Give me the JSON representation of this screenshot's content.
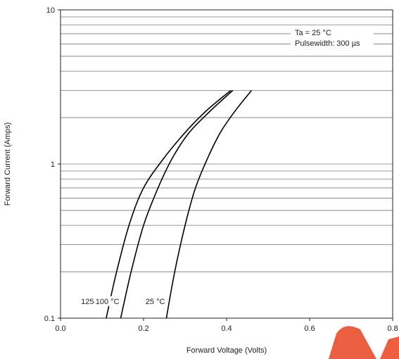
{
  "chart_data": {
    "type": "line",
    "title": "",
    "xlabel": "Forward Voltage (Volts)",
    "ylabel": "Forward Current (Amps)",
    "xlim": [
      0.0,
      0.8
    ],
    "ylim": [
      0.1,
      10
    ],
    "yscale": "log",
    "x_ticks": [
      "0.0",
      "0.2",
      "0.4",
      "0.6",
      "0.8"
    ],
    "y_ticks": [
      "0.1",
      "1",
      "10"
    ],
    "grid": "horizontal",
    "annotation_lines": [
      "Ta = 25 °C",
      "Pulsewidth: 300 µs"
    ],
    "series": [
      {
        "name": "125 °C",
        "points": [
          [
            0.11,
            0.1
          ],
          [
            0.135,
            0.2
          ],
          [
            0.165,
            0.4
          ],
          [
            0.2,
            0.7
          ],
          [
            0.25,
            1.1
          ],
          [
            0.3,
            1.6
          ],
          [
            0.35,
            2.2
          ],
          [
            0.41,
            3.0
          ]
        ]
      },
      {
        "name": "100 °C",
        "points": [
          [
            0.145,
            0.1
          ],
          [
            0.17,
            0.2
          ],
          [
            0.2,
            0.4
          ],
          [
            0.235,
            0.7
          ],
          [
            0.27,
            1.1
          ],
          [
            0.31,
            1.6
          ],
          [
            0.36,
            2.2
          ],
          [
            0.415,
            3.0
          ]
        ]
      },
      {
        "name": "25 °C",
        "points": [
          [
            0.255,
            0.1
          ],
          [
            0.275,
            0.2
          ],
          [
            0.3,
            0.4
          ],
          [
            0.325,
            0.7
          ],
          [
            0.355,
            1.1
          ],
          [
            0.385,
            1.6
          ],
          [
            0.42,
            2.2
          ],
          [
            0.46,
            3.0
          ]
        ]
      }
    ]
  }
}
